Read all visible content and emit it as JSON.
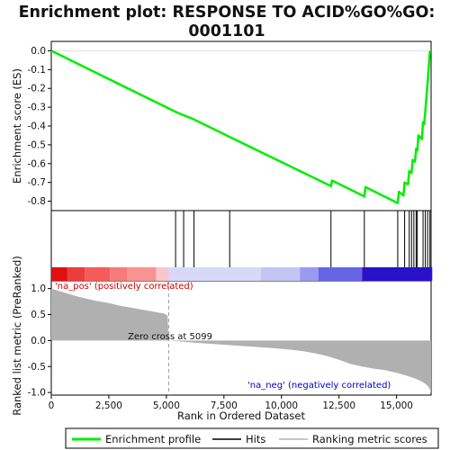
{
  "chart_data": {
    "type": "line",
    "title_line1": "Enrichment plot: RESPONSE TO ACID%GO%GO:",
    "title_line2": "0001101",
    "xlabel": "Rank in Ordered Dataset",
    "ylabel_top": "Enrichment score (ES)",
    "ylabel_bottom": "Ranked list metric (PreRanked)",
    "xlim": [
      0,
      16500
    ],
    "x_ticks": [
      0,
      2500,
      5000,
      7500,
      10000,
      12500,
      15000
    ],
    "x_tick_labels": [
      "0",
      "2,500",
      "5,000",
      "7,500",
      "10,000",
      "12,500",
      "15,000"
    ],
    "es_ylim": [
      -0.85,
      0.05
    ],
    "es_ticks": [
      0.0,
      -0.1,
      -0.2,
      -0.3,
      -0.4,
      -0.5,
      -0.6,
      -0.7,
      -0.8
    ],
    "es_tick_labels": [
      "0.0",
      "-0.1",
      "-0.2",
      "-0.3",
      "-0.4",
      "-0.5",
      "-0.6",
      "-0.7",
      "-0.8"
    ],
    "metric_ylim": [
      -1.05,
      1.15
    ],
    "metric_ticks": [
      1.0,
      0.5,
      0.0,
      -0.5,
      -1.0
    ],
    "metric_tick_labels": [
      "1.0",
      "0.5",
      "0.0",
      "-0.5",
      "-1.0"
    ],
    "enrichment_profile": {
      "name": "Enrichment profile",
      "color": "#00ee00",
      "x": [
        0,
        5400,
        5800,
        6200,
        7700,
        12150,
        12200,
        13600,
        13650,
        15050,
        15100,
        15300,
        15350,
        15500,
        15550,
        15650,
        15700,
        15800,
        15850,
        15900,
        15950,
        16100,
        16150,
        16200,
        16250,
        16300,
        16350,
        16400,
        16450
      ],
      "y": [
        0.0,
        -0.325,
        -0.345,
        -0.365,
        -0.455,
        -0.72,
        -0.69,
        -0.775,
        -0.725,
        -0.81,
        -0.75,
        -0.77,
        -0.7,
        -0.71,
        -0.64,
        -0.65,
        -0.58,
        -0.59,
        -0.52,
        -0.53,
        -0.45,
        -0.47,
        -0.38,
        -0.39,
        -0.32,
        -0.24,
        -0.165,
        -0.085,
        0.0
      ]
    },
    "hits": {
      "name": "Hits",
      "x": [
        5400,
        5750,
        6200,
        7750,
        12150,
        13600,
        15050,
        15350,
        15550,
        15650,
        15750,
        15850,
        15900,
        16150,
        16250,
        16350,
        16450
      ]
    },
    "ranking_metric": {
      "name": "Ranking metric scores",
      "color": "#b0b0b0",
      "x": [
        0,
        300,
        600,
        900,
        1200,
        1600,
        2000,
        2500,
        3000,
        3500,
        4000,
        4500,
        4900,
        5050,
        5099,
        5600,
        6500,
        7500,
        8500,
        9500,
        10500,
        11000,
        11500,
        12000,
        12500,
        13000,
        13500,
        14000,
        14500,
        15000,
        15400,
        15800,
        16100,
        16300,
        16400,
        16500
      ],
      "y": [
        1.0,
        0.96,
        0.92,
        0.88,
        0.84,
        0.8,
        0.76,
        0.72,
        0.67,
        0.63,
        0.59,
        0.55,
        0.52,
        0.48,
        0.0,
        -0.02,
        -0.05,
        -0.08,
        -0.11,
        -0.14,
        -0.18,
        -0.21,
        -0.25,
        -0.3,
        -0.37,
        -0.45,
        -0.5,
        -0.54,
        -0.57,
        -0.62,
        -0.67,
        -0.73,
        -0.79,
        -0.85,
        -0.9,
        -1.0
      ]
    },
    "heatmap_bands": [
      {
        "x0": 0,
        "x1": 700,
        "color": "#e01010"
      },
      {
        "x0": 700,
        "x1": 1450,
        "color": "#ec3d3d"
      },
      {
        "x0": 1450,
        "x1": 2550,
        "color": "#f55b5b"
      },
      {
        "x0": 2550,
        "x1": 3300,
        "color": "#f77a7a"
      },
      {
        "x0": 3300,
        "x1": 4550,
        "color": "#f99393"
      },
      {
        "x0": 4550,
        "x1": 5100,
        "color": "#fbc5cc"
      },
      {
        "x0": 5100,
        "x1": 9100,
        "color": "#d8d8f8"
      },
      {
        "x0": 9100,
        "x1": 10800,
        "color": "#c5c5f3"
      },
      {
        "x0": 10800,
        "x1": 11600,
        "color": "#9a9af0"
      },
      {
        "x0": 11600,
        "x1": 13500,
        "color": "#6565e6"
      },
      {
        "x0": 13500,
        "x1": 16550,
        "color": "#2a10c8"
      }
    ],
    "zero_cross_label": "Zero cross at 5099",
    "zero_cross_x": 5099,
    "annotation_pos": "'na_pos' (positively correlated)",
    "annotation_neg": "'na_neg' (negatively correlated)",
    "annotation_pos_color": "#cc0000",
    "annotation_neg_color": "#0000cc",
    "legend": {
      "placement": "bottom",
      "items": [
        "Enrichment profile",
        "Hits",
        "Ranking metric scores"
      ]
    }
  }
}
